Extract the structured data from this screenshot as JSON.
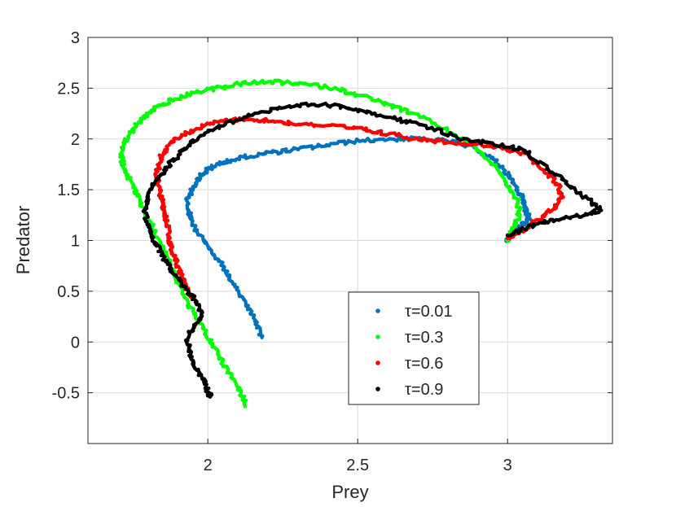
{
  "chart_data": {
    "type": "line",
    "title": "",
    "xlabel": "Prey",
    "ylabel": "Predator",
    "xlim": [
      1.6,
      3.35
    ],
    "ylim": [
      -1.0,
      3.0
    ],
    "xticks": [
      2,
      2.5,
      3
    ],
    "xtick_labels": [
      "2",
      "2.5",
      "3"
    ],
    "yticks": [
      -0.5,
      0,
      0.5,
      1,
      1.5,
      2,
      2.5,
      3
    ],
    "ytick_labels": [
      "-0.5",
      "0",
      "0.5",
      "1",
      "1.5",
      "2",
      "2.5",
      "3"
    ],
    "grid": true,
    "legend_position": "lower-right inside",
    "series": [
      {
        "name": "τ=0.01",
        "color": "#0072BD",
        "x": [
          2.18,
          2.16,
          2.12,
          2.08,
          2.04,
          2.0,
          1.96,
          1.94,
          1.93,
          1.95,
          1.97,
          2.0,
          2.05,
          2.12,
          2.2,
          2.3,
          2.4,
          2.5,
          2.6,
          2.7,
          2.8,
          2.9,
          2.96,
          3.0,
          3.03,
          3.05,
          3.06,
          3.07,
          3.05,
          3.03,
          3.01,
          3.0
        ],
        "y": [
          0.05,
          0.2,
          0.4,
          0.6,
          0.8,
          0.95,
          1.1,
          1.25,
          1.4,
          1.52,
          1.62,
          1.7,
          1.77,
          1.82,
          1.86,
          1.9,
          1.94,
          1.98,
          2.0,
          2.0,
          1.98,
          1.9,
          1.78,
          1.65,
          1.52,
          1.4,
          1.3,
          1.22,
          1.15,
          1.1,
          1.05,
          1.0
        ]
      },
      {
        "name": "τ=0.3",
        "color": "#00FF00",
        "x": [
          2.13,
          2.1,
          2.06,
          2.02,
          1.98,
          1.94,
          1.9,
          1.86,
          1.82,
          1.78,
          1.75,
          1.72,
          1.71,
          1.73,
          1.75,
          1.78,
          1.82,
          1.88,
          1.95,
          2.03,
          2.12,
          2.22,
          2.32,
          2.42,
          2.52,
          2.62,
          2.72,
          2.82,
          2.9,
          2.96,
          3.0,
          3.03,
          3.04,
          3.03,
          3.01,
          3.0
        ],
        "y": [
          -0.62,
          -0.45,
          -0.25,
          -0.05,
          0.15,
          0.35,
          0.6,
          0.85,
          1.1,
          1.35,
          1.55,
          1.7,
          1.85,
          2.0,
          2.1,
          2.2,
          2.3,
          2.38,
          2.45,
          2.5,
          2.55,
          2.56,
          2.54,
          2.5,
          2.42,
          2.32,
          2.2,
          2.05,
          1.9,
          1.72,
          1.55,
          1.4,
          1.28,
          1.18,
          1.08,
          1.0
        ]
      },
      {
        "name": "τ=0.6",
        "color": "#FF0000",
        "x": [
          1.94,
          1.92,
          1.9,
          1.88,
          1.87,
          1.86,
          1.85,
          1.84,
          1.83,
          1.84,
          1.87,
          1.92,
          1.98,
          2.05,
          2.12,
          2.2,
          2.3,
          2.4,
          2.5,
          2.6,
          2.7,
          2.8,
          2.9,
          2.98,
          3.06,
          3.12,
          3.17,
          3.18,
          3.15,
          3.1,
          3.05,
          3.0
        ],
        "y": [
          0.45,
          0.6,
          0.75,
          0.9,
          1.05,
          1.2,
          1.35,
          1.5,
          1.65,
          1.8,
          1.95,
          2.05,
          2.12,
          2.18,
          2.2,
          2.18,
          2.15,
          2.13,
          2.1,
          2.05,
          2.0,
          1.97,
          1.95,
          1.92,
          1.85,
          1.7,
          1.55,
          1.42,
          1.3,
          1.2,
          1.1,
          1.02
        ]
      },
      {
        "name": "τ=0.9",
        "color": "#000000",
        "x": [
          2.01,
          1.99,
          1.96,
          1.94,
          1.93,
          1.95,
          1.98,
          1.96,
          1.92,
          1.88,
          1.85,
          1.82,
          1.8,
          1.79,
          1.8,
          1.83,
          1.87,
          1.92,
          1.98,
          2.06,
          2.15,
          2.25,
          2.35,
          2.45,
          2.55,
          2.65,
          2.75,
          2.85,
          2.95,
          3.05,
          3.12,
          3.2,
          3.28,
          3.31,
          3.25,
          3.15,
          3.06,
          3.0
        ],
        "y": [
          -0.55,
          -0.4,
          -0.25,
          -0.1,
          0.05,
          0.15,
          0.25,
          0.4,
          0.55,
          0.7,
          0.85,
          1.0,
          1.15,
          1.3,
          1.45,
          1.6,
          1.75,
          1.9,
          2.05,
          2.15,
          2.25,
          2.3,
          2.34,
          2.32,
          2.26,
          2.18,
          2.1,
          2.0,
          1.95,
          1.9,
          1.75,
          1.55,
          1.38,
          1.3,
          1.25,
          1.2,
          1.12,
          1.05
        ]
      }
    ]
  }
}
